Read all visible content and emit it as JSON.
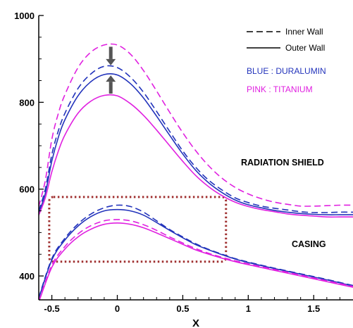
{
  "chart_data": {
    "type": "line",
    "title": "",
    "xlabel": "X",
    "ylabel": "",
    "xlim": [
      -0.6,
      1.8
    ],
    "ylim": [
      345,
      1000
    ],
    "x_ticks": [
      "-0.5",
      "0",
      "0.5",
      "1",
      "1.5"
    ],
    "x_tick_values": [
      -0.5,
      0,
      0.5,
      1,
      1.5
    ],
    "y_ticks": [
      "400",
      "600",
      "800",
      "1000"
    ],
    "y_tick_values": [
      400,
      600,
      800,
      1000
    ],
    "grid": false,
    "legend": {
      "placement": "top-right",
      "entries": [
        {
          "label": "Inner Wall",
          "dash": "dashed"
        },
        {
          "label": "Outer Wall",
          "dash": "solid"
        }
      ],
      "color_notes": [
        {
          "label": "BLUE : DURALUMIN",
          "color": "#2233bb"
        },
        {
          "label": "PINK : TITANIUM",
          "color": "#e020e0"
        }
      ]
    },
    "annotations": {
      "radiation_shield": "RADIATION SHIELD",
      "casing": "CASING"
    },
    "series": [
      {
        "material": "duralumin",
        "wall": "inner",
        "group": "radiation-shield",
        "color": "#2233bb",
        "dash": "dashed",
        "x": [
          -0.6,
          -0.55,
          -0.5,
          -0.45,
          -0.4,
          -0.3,
          -0.2,
          -0.1,
          0,
          0.1,
          0.2,
          0.3,
          0.4,
          0.5,
          0.6,
          0.7,
          0.8,
          0.9,
          1.0,
          1.1,
          1.2,
          1.3,
          1.4,
          1.5,
          1.6,
          1.7,
          1.8
        ],
        "y": [
          550,
          600,
          680,
          735,
          775,
          832,
          866,
          883,
          880,
          858,
          823,
          779,
          733,
          688,
          650,
          620,
          598,
          580,
          569,
          561,
          556,
          552,
          548,
          546,
          546,
          547,
          547
        ]
      },
      {
        "material": "duralumin",
        "wall": "outer",
        "group": "radiation-shield",
        "color": "#2233bb",
        "dash": "solid",
        "x": [
          -0.6,
          -0.55,
          -0.5,
          -0.45,
          -0.4,
          -0.3,
          -0.2,
          -0.1,
          0,
          0.1,
          0.2,
          0.3,
          0.4,
          0.5,
          0.6,
          0.7,
          0.8,
          0.9,
          1.0,
          1.1,
          1.2,
          1.3,
          1.4,
          1.5,
          1.6,
          1.7,
          1.8
        ],
        "y": [
          545,
          590,
          665,
          720,
          760,
          815,
          848,
          864,
          863,
          843,
          810,
          768,
          724,
          681,
          643,
          614,
          592,
          575,
          564,
          557,
          551,
          547,
          544,
          542,
          541,
          541,
          541
        ]
      },
      {
        "material": "titanium",
        "wall": "inner",
        "group": "radiation-shield",
        "color": "#e020e0",
        "dash": "dashed",
        "x": [
          -0.6,
          -0.55,
          -0.5,
          -0.45,
          -0.4,
          -0.3,
          -0.2,
          -0.1,
          0,
          0.1,
          0.2,
          0.3,
          0.4,
          0.5,
          0.6,
          0.7,
          0.8,
          0.9,
          1.0,
          1.1,
          1.2,
          1.3,
          1.4,
          1.5,
          1.6,
          1.7,
          1.8
        ],
        "y": [
          560,
          620,
          715,
          775,
          818,
          880,
          916,
          932,
          932,
          911,
          873,
          826,
          777,
          730,
          688,
          653,
          625,
          604,
          589,
          578,
          570,
          565,
          561,
          561,
          562,
          563,
          563
        ]
      },
      {
        "material": "titanium",
        "wall": "outer",
        "group": "radiation-shield",
        "color": "#e020e0",
        "dash": "solid",
        "x": [
          -0.6,
          -0.55,
          -0.5,
          -0.45,
          -0.4,
          -0.3,
          -0.2,
          -0.1,
          0,
          0.1,
          0.2,
          0.3,
          0.4,
          0.5,
          0.6,
          0.7,
          0.8,
          0.9,
          1.0,
          1.1,
          1.2,
          1.3,
          1.4,
          1.5,
          1.6,
          1.7,
          1.8
        ],
        "y": [
          540,
          580,
          640,
          688,
          725,
          775,
          803,
          816,
          815,
          797,
          770,
          736,
          700,
          664,
          631,
          605,
          585,
          570,
          560,
          553,
          548,
          543,
          540,
          538,
          536,
          536,
          536
        ]
      },
      {
        "material": "duralumin",
        "wall": "inner",
        "group": "casing",
        "color": "#2233bb",
        "dash": "dashed",
        "x": [
          -0.6,
          -0.5,
          -0.4,
          -0.3,
          -0.2,
          -0.1,
          0,
          0.1,
          0.2,
          0.3,
          0.4,
          0.5,
          0.6,
          0.7,
          0.8,
          0.9,
          1.0,
          1.2,
          1.4,
          1.6,
          1.8
        ],
        "y": [
          350,
          440,
          487,
          520,
          543,
          557,
          563,
          560,
          547,
          527,
          507,
          490,
          474,
          461,
          450,
          440,
          432,
          418,
          405,
          392,
          378
        ]
      },
      {
        "material": "duralumin",
        "wall": "outer",
        "group": "casing",
        "color": "#2233bb",
        "dash": "solid",
        "x": [
          -0.6,
          -0.5,
          -0.4,
          -0.3,
          -0.2,
          -0.1,
          0,
          0.1,
          0.2,
          0.3,
          0.4,
          0.5,
          0.6,
          0.7,
          0.8,
          0.9,
          1.0,
          1.2,
          1.4,
          1.6,
          1.8
        ],
        "y": [
          348,
          437,
          483,
          515,
          537,
          550,
          553,
          550,
          540,
          523,
          505,
          488,
          472,
          460,
          449,
          439,
          431,
          417,
          404,
          391,
          377
        ]
      },
      {
        "material": "titanium",
        "wall": "inner",
        "group": "casing",
        "color": "#e020e0",
        "dash": "dashed",
        "x": [
          -0.6,
          -0.5,
          -0.4,
          -0.3,
          -0.2,
          -0.1,
          0,
          0.1,
          0.2,
          0.3,
          0.4,
          0.5,
          0.6,
          0.7,
          0.8,
          0.9,
          1.0,
          1.2,
          1.4,
          1.6,
          1.8
        ],
        "y": [
          342,
          425,
          468,
          497,
          516,
          527,
          530,
          527,
          518,
          505,
          490,
          476,
          463,
          452,
          443,
          435,
          428,
          415,
          402,
          389,
          376
        ]
      },
      {
        "material": "titanium",
        "wall": "outer",
        "group": "casing",
        "color": "#e020e0",
        "dash": "solid",
        "x": [
          -0.6,
          -0.5,
          -0.4,
          -0.3,
          -0.2,
          -0.1,
          0,
          0.1,
          0.2,
          0.3,
          0.4,
          0.5,
          0.6,
          0.7,
          0.8,
          0.9,
          1.0,
          1.2,
          1.4,
          1.6,
          1.8
        ],
        "y": [
          340,
          420,
          462,
          490,
          508,
          519,
          522,
          519,
          511,
          499,
          486,
          473,
          460,
          450,
          441,
          433,
          426,
          413,
          400,
          387,
          374
        ]
      }
    ],
    "highlight_box": {
      "x": [
        -0.52,
        0.83
      ],
      "y": [
        433,
        582
      ],
      "color": "#a03030"
    },
    "arrows": [
      {
        "x": -0.05,
        "y_from": 928,
        "y_to": 885,
        "direction": "down"
      },
      {
        "x": -0.05,
        "y_from": 820,
        "y_to": 862,
        "direction": "up"
      }
    ]
  }
}
